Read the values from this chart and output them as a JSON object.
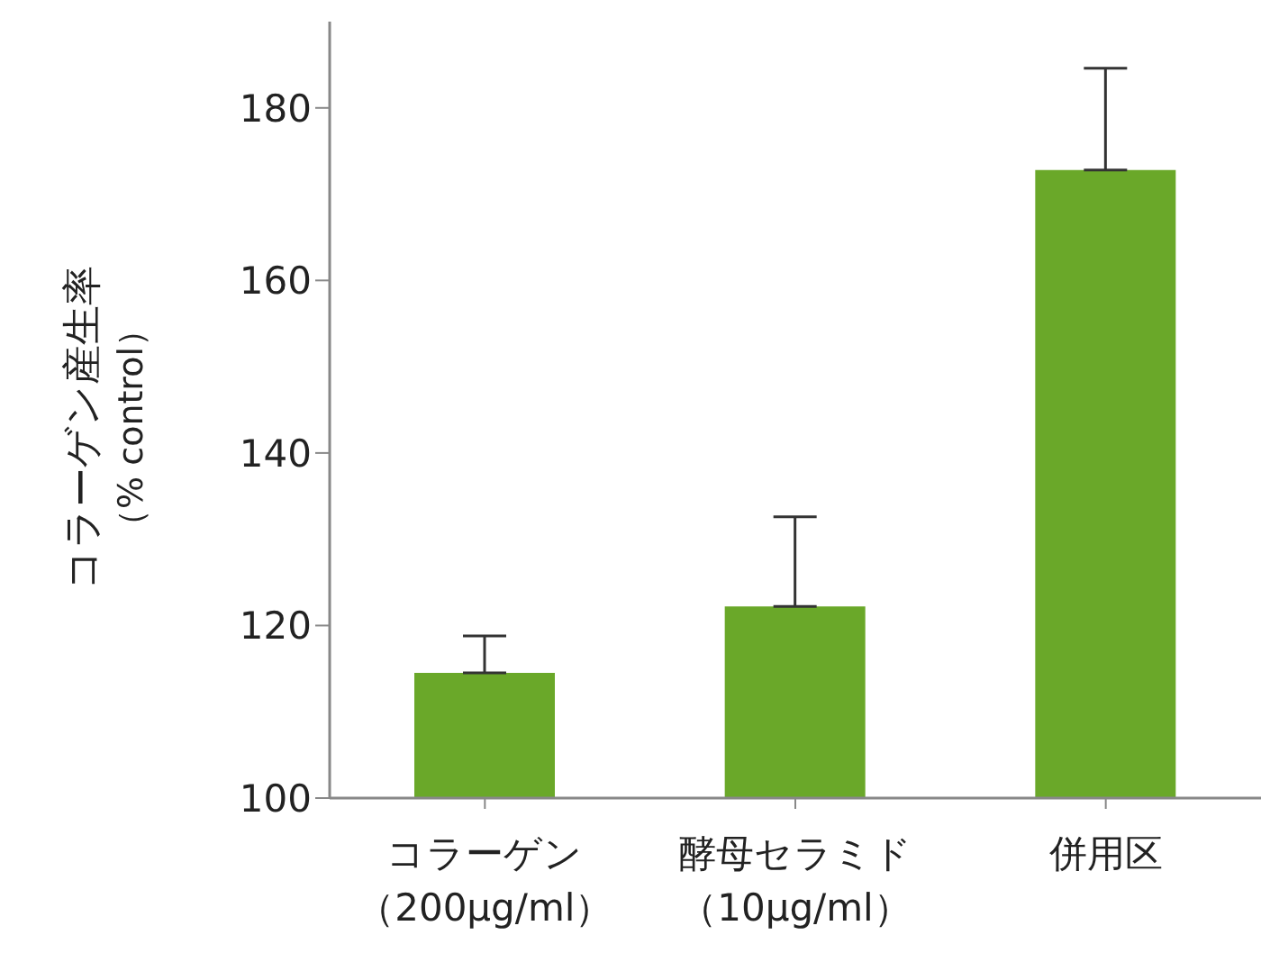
{
  "chart_data": {
    "type": "bar",
    "ylabel": "コラーゲン産生率（% control）",
    "categories": [
      "コラーゲン（200μg/ml）",
      "酵母セラミド（10μg/ml）",
      "併用区"
    ],
    "values": [
      114.5,
      122.2,
      172.8
    ],
    "errors": [
      [
        114.5,
        118.8
      ],
      [
        122.2,
        132.6
      ],
      [
        172.8,
        184.6
      ]
    ],
    "color": "#6aa829",
    "ylim": [
      100,
      190
    ],
    "yticks": [
      100,
      120,
      140,
      160,
      180
    ],
    "grid": false,
    "legend": false
  }
}
